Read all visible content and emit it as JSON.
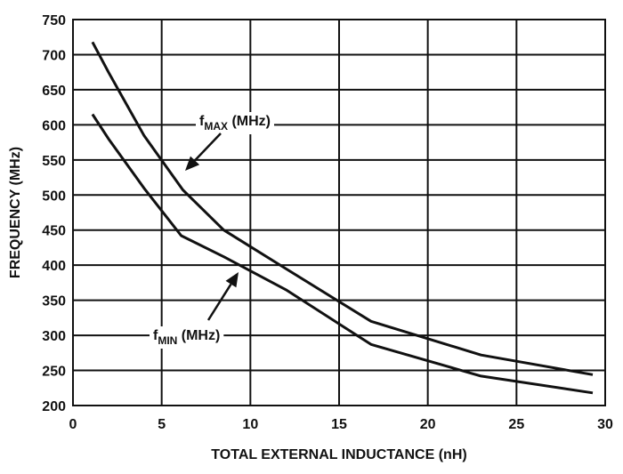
{
  "chart_data": {
    "type": "line",
    "title": "",
    "xlabel": "TOTAL EXTERNAL INDUCTANCE (nH)",
    "ylabel": "FREQUENCY (MHz)",
    "xlim": [
      0,
      30
    ],
    "ylim": [
      200,
      750
    ],
    "xticks": [
      0,
      5,
      10,
      15,
      20,
      25,
      30
    ],
    "yticks": [
      200,
      250,
      300,
      350,
      400,
      450,
      500,
      550,
      600,
      650,
      700,
      750
    ],
    "grid": true,
    "series": [
      {
        "name": "fMAX (MHz)",
        "label_main": "f",
        "label_sub": "MAX",
        "label_tail": " (MHz)",
        "x": [
          1.1,
          2.0,
          4.0,
          6.2,
          8.5,
          12.0,
          16.8,
          23.0,
          29.3
        ],
        "y": [
          718,
          675,
          585,
          507,
          450,
          395,
          320,
          272,
          244
        ]
      },
      {
        "name": "fMIN (MHz)",
        "label_main": "f",
        "label_sub": "MIN",
        "label_tail": " (MHz)",
        "x": [
          1.1,
          2.0,
          4.0,
          6.1,
          8.5,
          12.0,
          16.8,
          23.0,
          29.3
        ],
        "y": [
          615,
          580,
          510,
          442,
          412,
          365,
          287,
          242,
          218
        ]
      }
    ]
  }
}
